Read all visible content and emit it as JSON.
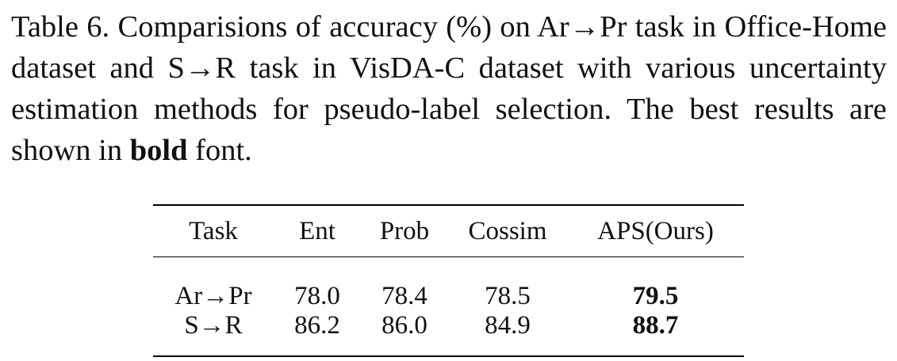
{
  "caption": {
    "before_bold": "Table 6. Comparisions of accuracy (%) on Ar→Pr task in Office-Home dataset and S→R task in VisDA-C dataset with various uncertainty estimation methods for pseudo-label selection. The best results are shown in ",
    "bold_word": "bold",
    "after_bold": " font."
  },
  "table": {
    "headers": [
      "Task",
      "Ent",
      "Prob",
      "Cossim",
      "APS(Ours)"
    ],
    "rows": [
      {
        "task": "Ar→Pr",
        "ent": "78.0",
        "prob": "78.4",
        "cossim": "78.5",
        "aps": "79.5"
      },
      {
        "task": "S→R",
        "ent": "86.2",
        "prob": "86.0",
        "cossim": "84.9",
        "aps": "88.7"
      }
    ]
  }
}
